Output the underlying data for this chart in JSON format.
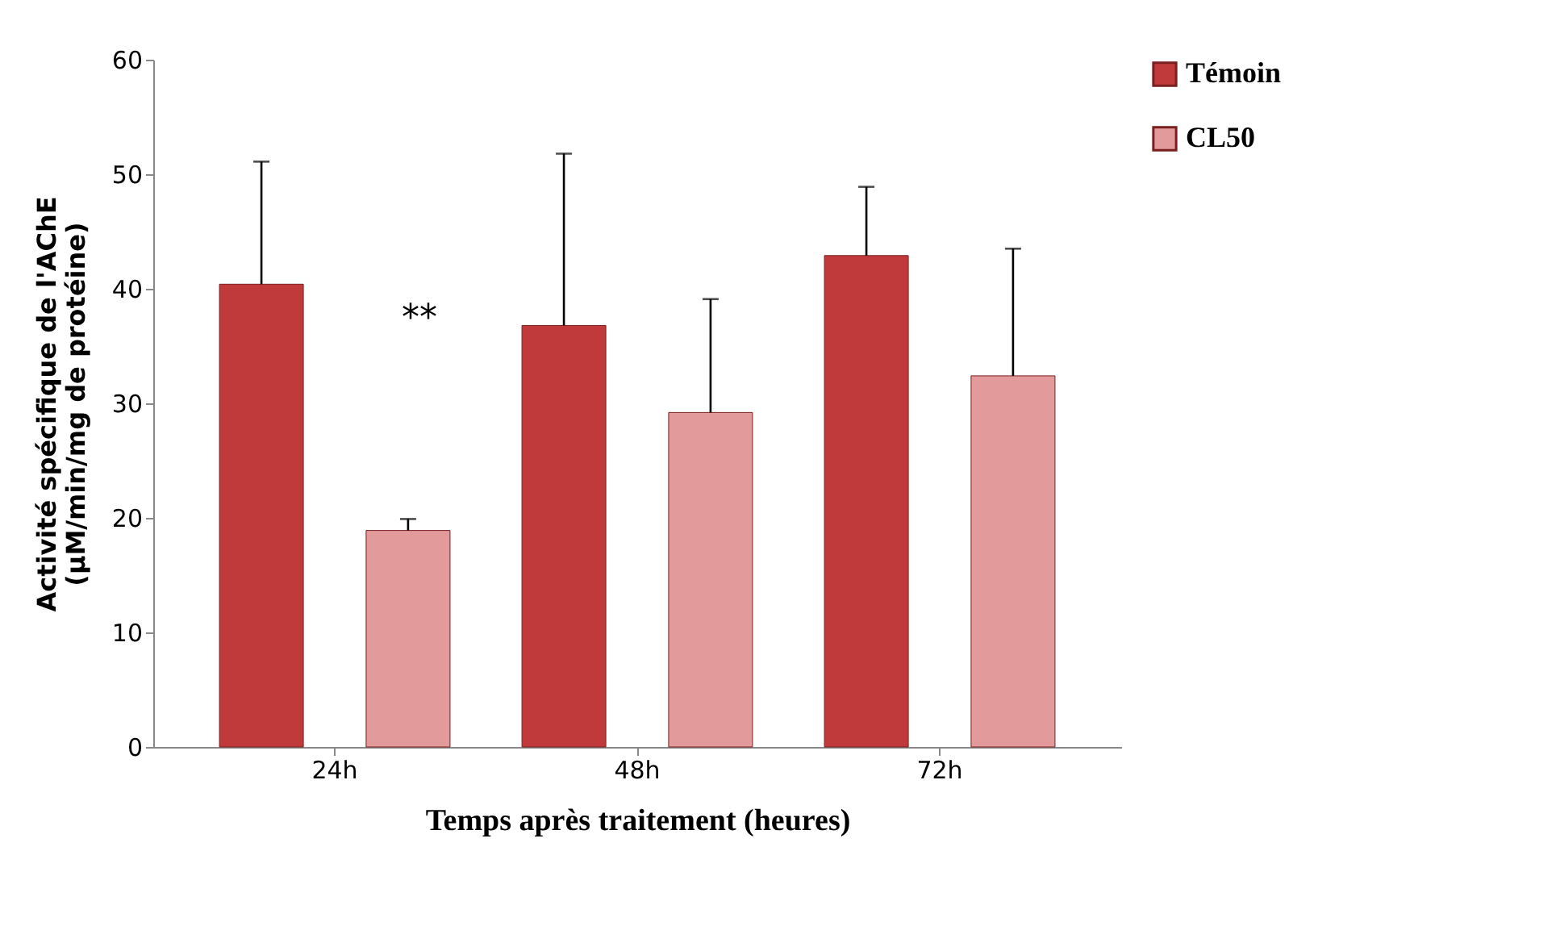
{
  "chart_data": {
    "type": "bar",
    "xlabel": "Temps après traitement (heures)",
    "ylabel": "Activité spécifique de l'AChE\n(µM/min/mg de protéine)",
    "categories": [
      "24h",
      "48h",
      "72h"
    ],
    "series": [
      {
        "name": "Témoin",
        "color": "#c0393b",
        "values": [
          40.4,
          36.8,
          42.9
        ],
        "errors": [
          [
            40.4,
            51.1
          ],
          [
            36.8,
            51.8
          ],
          [
            42.9,
            48.9
          ]
        ]
      },
      {
        "name": "CL50",
        "color": "#e39a9a",
        "values": [
          18.9,
          29.2,
          32.4
        ],
        "errors": [
          [
            18.9,
            19.9
          ],
          [
            29.2,
            39.1
          ],
          [
            32.4,
            43.5
          ]
        ]
      }
    ],
    "annotations": [
      "**"
    ],
    "ylim": [
      0,
      60
    ],
    "yticks": [
      0,
      10,
      20,
      30,
      40,
      50,
      60
    ],
    "grid": false,
    "legend": "right"
  }
}
